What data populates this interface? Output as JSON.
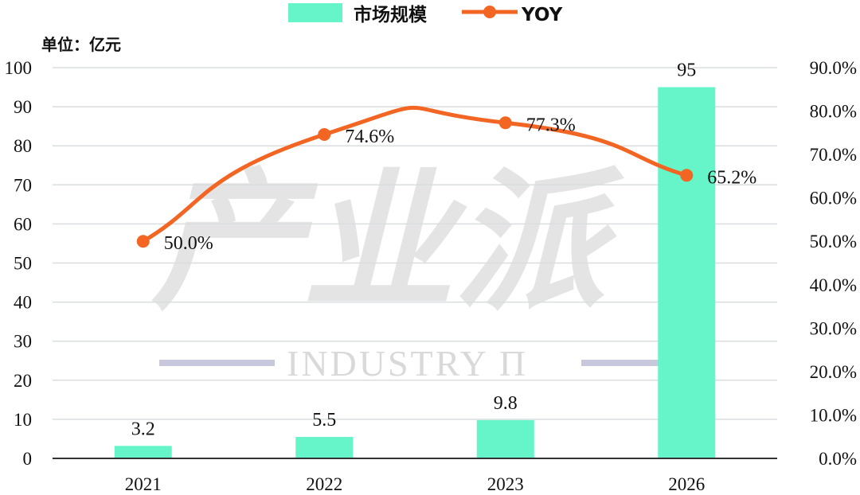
{
  "legend": {
    "bar_label": "市场规模",
    "line_label": "YOY"
  },
  "unit_label": "单位：亿元",
  "watermark": {
    "chinese": "产业派",
    "english": "INDUSTRY Π"
  },
  "colors": {
    "bar": "#66F5C8",
    "line": "#F26522",
    "grid": "#d9dde0",
    "watermark_bar": "#c8c8dc"
  },
  "chart_data": {
    "type": "bar",
    "categories": [
      "2021",
      "2022",
      "2023",
      "2026"
    ],
    "series": [
      {
        "name": "市场规模",
        "type": "bar",
        "axis": "left",
        "values": [
          3.2,
          5.5,
          9.8,
          95
        ],
        "labels": [
          "3.2",
          "5.5",
          "9.8",
          "95"
        ]
      },
      {
        "name": "YOY",
        "type": "line",
        "smooth": true,
        "axis": "right",
        "values": [
          50.0,
          74.6,
          77.3,
          65.2
        ],
        "labels": [
          "50.0%",
          "74.6%",
          "77.3%",
          "65.2%"
        ]
      }
    ],
    "y_left": {
      "ylim": [
        0,
        100
      ],
      "ticks": [
        "0",
        "10",
        "20",
        "30",
        "40",
        "50",
        "60",
        "70",
        "80",
        "90",
        "100"
      ]
    },
    "y_right": {
      "ylim": [
        0,
        90
      ],
      "ticks": [
        "0.0%",
        "10.0%",
        "20.0%",
        "30.0%",
        "40.0%",
        "50.0%",
        "60.0%",
        "70.0%",
        "80.0%",
        "90.0%"
      ]
    },
    "grid": true,
    "legend_position": "top-center"
  }
}
